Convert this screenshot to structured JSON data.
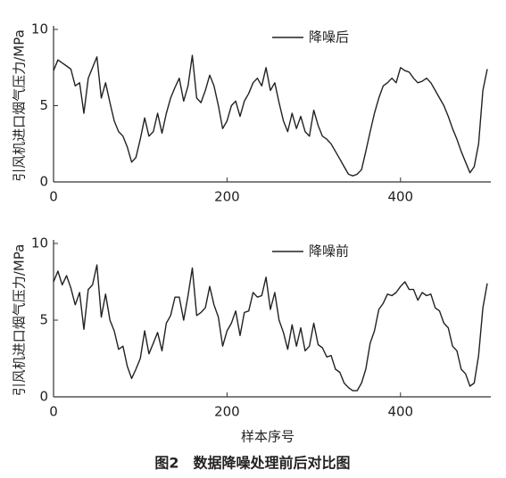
{
  "chart_data": [
    {
      "type": "line",
      "ylabel": "引风机进口烟气压力/MPa",
      "x": [
        0,
        5,
        10,
        15,
        20,
        25,
        30,
        35,
        40,
        45,
        50,
        55,
        60,
        65,
        70,
        75,
        80,
        85,
        90,
        95,
        100,
        105,
        110,
        115,
        120,
        125,
        130,
        135,
        140,
        145,
        150,
        155,
        160,
        165,
        170,
        175,
        180,
        185,
        190,
        195,
        200,
        205,
        210,
        215,
        220,
        225,
        230,
        235,
        240,
        245,
        250,
        255,
        260,
        265,
        270,
        275,
        280,
        285,
        290,
        295,
        300,
        305,
        310,
        315,
        320,
        325,
        330,
        335,
        340,
        345,
        350,
        355,
        360,
        365,
        370,
        375,
        380,
        385,
        390,
        395,
        400,
        405,
        410,
        415,
        420,
        425,
        430,
        435,
        440,
        445,
        450,
        455,
        460,
        465,
        470,
        475,
        480,
        485,
        490,
        495,
        500
      ],
      "series": [
        {
          "name": "降噪后",
          "color": "#222222",
          "values": [
            7.3,
            8.0,
            7.8,
            7.6,
            7.4,
            6.3,
            6.5,
            4.5,
            6.8,
            7.5,
            8.2,
            5.5,
            6.5,
            5.2,
            4.0,
            3.3,
            3.0,
            2.3,
            1.3,
            1.6,
            2.8,
            4.2,
            3.0,
            3.3,
            4.5,
            3.2,
            4.5,
            5.5,
            6.2,
            6.8,
            5.3,
            6.3,
            8.3,
            5.5,
            5.2,
            6.0,
            7.0,
            6.3,
            5.0,
            3.5,
            4.0,
            5.0,
            5.3,
            4.3,
            5.3,
            5.8,
            6.5,
            6.8,
            6.3,
            7.5,
            6.0,
            6.5,
            5.2,
            4.0,
            3.3,
            4.5,
            3.5,
            4.3,
            3.3,
            3.0,
            4.7,
            3.7,
            3.0,
            2.8,
            2.5,
            2.0,
            1.5,
            1.0,
            0.5,
            0.4,
            0.5,
            0.8,
            2.0,
            3.3,
            4.5,
            5.5,
            6.3,
            6.5,
            6.8,
            6.5,
            7.5,
            7.3,
            7.2,
            6.8,
            6.5,
            6.6,
            6.8,
            6.5,
            6.0,
            5.5,
            5.0,
            4.3,
            3.5,
            2.8,
            2.0,
            1.3,
            0.6,
            1.0,
            2.5,
            6.0,
            7.4
          ]
        }
      ],
      "xlim": [
        0,
        500
      ],
      "xticks": [
        0,
        200,
        400
      ],
      "ylim": [
        0,
        10
      ],
      "yticks": [
        0,
        5,
        10
      ],
      "legend": "top-right"
    },
    {
      "type": "line",
      "ylabel": "引风机进口烟气压力/MPa",
      "xlabel": "样本序号",
      "x": [
        0,
        5,
        10,
        15,
        20,
        25,
        30,
        35,
        40,
        45,
        50,
        55,
        60,
        65,
        70,
        75,
        80,
        85,
        90,
        95,
        100,
        105,
        110,
        115,
        120,
        125,
        130,
        135,
        140,
        145,
        150,
        155,
        160,
        165,
        170,
        175,
        180,
        185,
        190,
        195,
        200,
        205,
        210,
        215,
        220,
        225,
        230,
        235,
        240,
        245,
        250,
        255,
        260,
        265,
        270,
        275,
        280,
        285,
        290,
        295,
        300,
        305,
        310,
        315,
        320,
        325,
        330,
        335,
        340,
        345,
        350,
        355,
        360,
        365,
        370,
        375,
        380,
        385,
        390,
        395,
        400,
        405,
        410,
        415,
        420,
        425,
        430,
        435,
        440,
        445,
        450,
        455,
        460,
        465,
        470,
        475,
        480,
        485,
        490,
        495,
        500
      ],
      "series": [
        {
          "name": "降噪前",
          "color": "#222222",
          "values": [
            7.5,
            8.2,
            7.3,
            7.9,
            7.1,
            6.0,
            6.8,
            4.4,
            7.0,
            7.3,
            8.6,
            5.2,
            6.7,
            5.0,
            4.3,
            3.1,
            3.3,
            2.0,
            1.2,
            1.8,
            2.5,
            4.3,
            2.8,
            3.5,
            4.2,
            3.0,
            4.8,
            5.3,
            6.5,
            6.5,
            5.0,
            6.6,
            8.4,
            5.3,
            5.5,
            5.8,
            7.2,
            6.0,
            5.2,
            3.3,
            4.3,
            4.8,
            5.6,
            4.0,
            5.5,
            5.6,
            6.8,
            6.5,
            6.6,
            7.8,
            5.7,
            6.8,
            5.0,
            4.2,
            3.1,
            4.7,
            3.3,
            4.5,
            3.0,
            3.3,
            4.8,
            3.4,
            3.2,
            2.6,
            2.7,
            1.8,
            1.6,
            0.9,
            0.6,
            0.4,
            0.4,
            0.9,
            1.8,
            3.5,
            4.3,
            5.7,
            6.1,
            6.7,
            6.6,
            6.8,
            7.2,
            7.5,
            7.0,
            7.0,
            6.3,
            6.8,
            6.6,
            6.7,
            5.8,
            5.6,
            4.8,
            4.5,
            3.3,
            3.0,
            1.8,
            1.5,
            0.7,
            0.9,
            2.7,
            5.8,
            7.4
          ]
        }
      ],
      "xlim": [
        0,
        500
      ],
      "xticks": [
        0,
        200,
        400
      ],
      "ylim": [
        0,
        10
      ],
      "yticks": [
        0,
        5,
        10
      ],
      "legend": "top-right"
    }
  ],
  "caption": "图2　数据降噪处理前后对比图"
}
